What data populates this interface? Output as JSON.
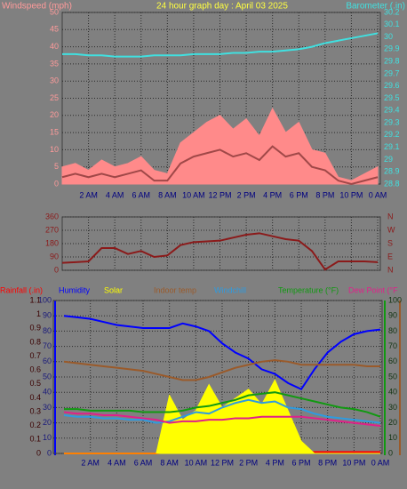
{
  "chart_data": [
    {
      "type": "line",
      "title": "24 hour graph day : April 03 2025",
      "ylabel": "Windspeed (mph)",
      "y2label": "Barometer (.in)",
      "x": [
        0,
        1,
        2,
        3,
        4,
        5,
        6,
        7,
        8,
        9,
        10,
        11,
        12,
        13,
        14,
        15,
        16,
        17,
        18,
        19,
        20,
        21,
        22,
        23,
        24
      ],
      "xlim": [
        0,
        24
      ],
      "xticks": [
        {
          "value": 2,
          "label": "2 AM"
        },
        {
          "value": 4,
          "label": "4 AM"
        },
        {
          "value": 6,
          "label": "6 AM"
        },
        {
          "value": 8,
          "label": "8 AM"
        },
        {
          "value": 10,
          "label": "10 AM"
        },
        {
          "value": 12,
          "label": "12 PM"
        },
        {
          "value": 14,
          "label": "2 PM"
        },
        {
          "value": 16,
          "label": "4 PM"
        },
        {
          "value": 18,
          "label": "6 PM"
        },
        {
          "value": 20,
          "label": "8 PM"
        },
        {
          "value": 22,
          "label": "10 PM"
        },
        {
          "value": 24,
          "label": "0 AM"
        }
      ],
      "ylim": [
        0,
        50
      ],
      "yticks": [
        0,
        5,
        10,
        15,
        20,
        25,
        30,
        35,
        40,
        45,
        50
      ],
      "y2lim": [
        28.8,
        30.2
      ],
      "y2ticks": [
        28.8,
        28.9,
        29,
        29.1,
        29.2,
        29.3,
        29.4,
        29.5,
        29.6,
        29.7,
        29.8,
        29.9,
        30,
        30.1,
        30.2
      ],
      "grid": true,
      "series": [
        {
          "color": "#ff8a8a",
          "area": true,
          "values": [
            5,
            6,
            4,
            7,
            5,
            6,
            8,
            4,
            3,
            12,
            15,
            18,
            20,
            16,
            19,
            14,
            22,
            15,
            18,
            10,
            9,
            2,
            1,
            3,
            5
          ]
        },
        {
          "color": "#a04848",
          "values": [
            2,
            3,
            2,
            3,
            2,
            3,
            4,
            1,
            1,
            6,
            8,
            9,
            10,
            8,
            9,
            7,
            11,
            8,
            9,
            5,
            4,
            1,
            0,
            1,
            2
          ]
        },
        {
          "color": "#40e0e0",
          "axis": "y2",
          "values": [
            29.86,
            29.86,
            29.85,
            29.85,
            29.84,
            29.84,
            29.84,
            29.85,
            29.85,
            29.85,
            29.86,
            29.86,
            29.86,
            29.87,
            29.87,
            29.88,
            29.88,
            29.89,
            29.9,
            29.92,
            29.95,
            29.97,
            29.99,
            30.01,
            30.03
          ]
        }
      ]
    },
    {
      "type": "line",
      "x": [
        0,
        1,
        2,
        3,
        4,
        5,
        6,
        7,
        8,
        9,
        10,
        11,
        12,
        13,
        14,
        15,
        16,
        17,
        18,
        19,
        20,
        21,
        22,
        23,
        24
      ],
      "xlim": [
        0,
        24
      ],
      "xticks": [
        2,
        4,
        6,
        8,
        10,
        12,
        14,
        16,
        18,
        20,
        22,
        24
      ],
      "ylim": [
        0,
        360
      ],
      "yticks": [
        0,
        90,
        180,
        270,
        360
      ],
      "y2lim": [
        0,
        360
      ],
      "y2ticks": [
        {
          "value": 360,
          "label": "N"
        },
        {
          "value": 270,
          "label": "W"
        },
        {
          "value": 180,
          "label": "S"
        },
        {
          "value": 90,
          "label": "E"
        },
        {
          "value": 0,
          "label": "N"
        }
      ],
      "grid": true,
      "series": [
        {
          "color": "#8b1a1a",
          "values": [
            50,
            55,
            60,
            150,
            150,
            110,
            130,
            90,
            100,
            170,
            190,
            195,
            200,
            220,
            240,
            250,
            230,
            210,
            200,
            130,
            5,
            60,
            60,
            60,
            55
          ]
        }
      ]
    },
    {
      "type": "line",
      "x": [
        0,
        1,
        2,
        3,
        4,
        5,
        6,
        7,
        8,
        9,
        10,
        11,
        12,
        13,
        14,
        15,
        16,
        17,
        18,
        19,
        20,
        21,
        22,
        23,
        24
      ],
      "xlim": [
        0,
        24
      ],
      "xticks": [
        {
          "value": 2,
          "label": "2 AM"
        },
        {
          "value": 4,
          "label": "4 AM"
        },
        {
          "value": 6,
          "label": "6 AM"
        },
        {
          "value": 8,
          "label": "8 AM"
        },
        {
          "value": 10,
          "label": "10 AM"
        },
        {
          "value": 12,
          "label": "12 PM"
        },
        {
          "value": 14,
          "label": "2 PM"
        },
        {
          "value": 16,
          "label": "4 PM"
        },
        {
          "value": 18,
          "label": "6 PM"
        },
        {
          "value": 20,
          "label": "8 PM"
        },
        {
          "value": 22,
          "label": "10 PM"
        },
        {
          "value": 24,
          "label": "0 AM"
        }
      ],
      "ylim": [
        0,
        100
      ],
      "yticks": [
        0,
        10,
        20,
        30,
        40,
        50,
        60,
        70,
        80,
        90,
        100
      ],
      "y2lim": [
        0,
        100
      ],
      "y2ticks": [
        0,
        10,
        20,
        30,
        40,
        50,
        60,
        70,
        80,
        90,
        100
      ],
      "y3lim": [
        0,
        1.1
      ],
      "y3ticks": [
        0,
        0.1,
        0.2,
        0.3,
        0.4,
        0.5,
        0.6,
        0.7,
        0.8,
        0.9,
        1,
        1.1
      ],
      "grid": true,
      "series": [
        {
          "name": "Rainfall (.in)",
          "color": "#ff0000",
          "axis": "y3",
          "values": [
            0,
            0,
            0,
            0,
            0,
            0,
            0,
            0,
            0.01,
            0.01,
            0.01,
            0.01,
            0.01,
            0.01,
            0.01,
            0.01,
            0.01,
            0.01,
            0.01,
            0.01,
            0.01,
            0.01,
            0.01,
            0.01,
            0.01
          ]
        },
        {
          "name": "Solar",
          "color": "#ffff00",
          "area": true,
          "values": [
            0,
            0,
            0,
            0,
            0,
            0,
            0,
            0,
            38,
            22,
            28,
            45,
            30,
            36,
            42,
            32,
            48,
            28,
            8,
            0,
            0,
            0,
            0,
            0,
            0
          ]
        },
        {
          "name": "Humidity",
          "color": "#0000ff",
          "values": [
            90,
            89,
            88,
            86,
            84,
            83,
            82,
            82,
            82,
            85,
            83,
            80,
            72,
            66,
            62,
            55,
            52,
            46,
            42,
            55,
            66,
            73,
            78,
            80,
            81
          ]
        },
        {
          "name": "Indoor temp",
          "color": "#9a5a2a",
          "axis": "y2",
          "values": [
            60,
            59,
            58,
            57,
            56,
            55,
            54,
            52,
            50,
            48,
            48,
            50,
            53,
            56,
            58,
            60,
            61,
            60,
            58,
            58,
            58,
            58,
            58,
            57,
            57
          ]
        },
        {
          "name": "Windchill",
          "color": "#2e9be0",
          "axis": "y2",
          "values": [
            25,
            24,
            24,
            23,
            23,
            22,
            22,
            20,
            21,
            24,
            27,
            26,
            30,
            33,
            35,
            33,
            34,
            30,
            29,
            26,
            24,
            23,
            22,
            21,
            20
          ]
        },
        {
          "name": "Temperature (°F)",
          "color": "#119911",
          "axis": "y2",
          "values": [
            29,
            29,
            28,
            28,
            28,
            28,
            27,
            27,
            27,
            28,
            30,
            31,
            33,
            35,
            38,
            39,
            40,
            38,
            36,
            34,
            32,
            30,
            29,
            27,
            24
          ]
        },
        {
          "name": "Dew Point (°F",
          "color": "#e0208a",
          "axis": "y2",
          "values": [
            27,
            26,
            26,
            25,
            25,
            24,
            23,
            22,
            20,
            21,
            21,
            22,
            22,
            23,
            23,
            24,
            24,
            24,
            24,
            23,
            22,
            21,
            20,
            19,
            18
          ]
        }
      ]
    }
  ]
}
